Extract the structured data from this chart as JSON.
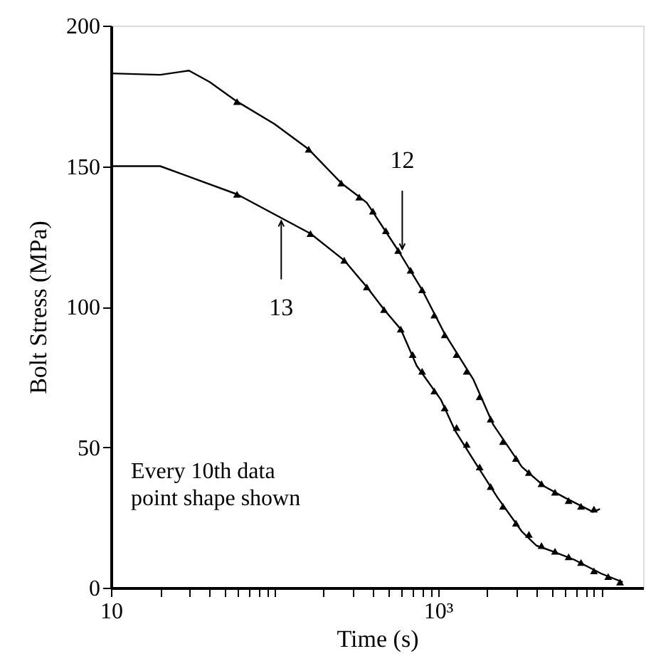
{
  "chart_data": {
    "type": "line",
    "xlabel": "Time (s)",
    "ylabel": "Bolt Stress (MPa)",
    "log": "x",
    "grid": false,
    "xlim": [
      10,
      18000
    ],
    "ylim": [
      0,
      200
    ],
    "xticks": [
      10,
      {
        "value": 20,
        "label": null
      },
      {
        "value": 30,
        "label": null
      },
      {
        "value": 40,
        "label": null
      },
      {
        "value": 50,
        "label": null
      },
      {
        "value": 60,
        "label": null
      },
      {
        "value": 70,
        "label": null
      },
      {
        "value": 80,
        "label": null
      },
      {
        "value": 90,
        "label": null
      },
      {
        "value": 100,
        "label": null
      },
      {
        "value": 200,
        "label": null
      },
      {
        "value": 300,
        "label": null
      },
      {
        "value": 400,
        "label": null
      },
      {
        "value": 500,
        "label": null
      },
      {
        "value": 600,
        "label": null
      },
      {
        "value": 700,
        "label": null
      },
      {
        "value": 800,
        "label": null
      },
      {
        "value": 900,
        "label": null
      },
      {
        "value": 1000,
        "label": "10³"
      },
      {
        "value": 2000,
        "label": null
      },
      {
        "value": 3000,
        "label": null
      },
      {
        "value": 4000,
        "label": null
      },
      {
        "value": 5000,
        "label": null
      },
      {
        "value": 6000,
        "label": null
      },
      {
        "value": 7000,
        "label": null
      },
      {
        "value": 8000,
        "label": null
      },
      {
        "value": 9000,
        "label": null
      },
      {
        "value": 10000,
        "label": null
      }
    ],
    "yticks": [
      0,
      50,
      100,
      150,
      200
    ],
    "series": [
      {
        "color": "#000000",
        "x": [
          10,
          20,
          30,
          40,
          59,
          100,
          162,
          256,
          367,
          571,
          800,
          1085,
          1650,
          2180,
          3260,
          4490,
          6000,
          8870,
          9800
        ],
        "values": [
          183,
          182.5,
          184,
          180,
          173,
          165,
          156,
          144,
          137,
          120,
          106,
          91,
          74,
          58,
          43,
          36,
          32,
          27,
          28
        ]
      },
      {
        "type": "scatter",
        "marker": "triangle",
        "color": "#000000",
        "x": [
          59,
          162,
          256,
          330,
          400,
          480,
          571,
          680,
          800,
          950,
          1100,
          1300,
          1500,
          1800,
          2100,
          2500,
          3000,
          3600,
          4300,
          5200,
          6300,
          7500,
          9000
        ],
        "values": [
          173,
          156,
          144,
          139,
          134,
          127,
          120,
          113,
          106,
          97,
          90,
          83,
          77,
          68,
          60,
          52,
          46,
          41,
          37,
          34,
          31,
          29,
          28
        ]
      },
      {
        "color": "#000000",
        "x": [
          10,
          20,
          59,
          166,
          267,
          367,
          468,
          592,
          741,
          1040,
          1270,
          1650,
          2320,
          3260,
          4000,
          5000,
          6800,
          10000,
          13500
        ],
        "values": [
          150,
          150,
          140,
          126,
          116.5,
          107,
          99,
          92,
          79,
          67,
          56,
          45.5,
          32,
          20,
          15,
          13,
          10,
          5,
          2
        ]
      },
      {
        "type": "scatter",
        "marker": "triangle",
        "color": "#000000",
        "x": [
          59,
          166,
          267,
          367,
          468,
          592,
          700,
          800,
          950,
          1100,
          1300,
          1500,
          1800,
          2100,
          2500,
          3000,
          3600,
          4300,
          5200,
          6300,
          7500,
          9000,
          11000,
          13000
        ],
        "values": [
          140,
          126,
          116.5,
          107,
          99,
          92,
          83,
          77,
          70,
          64,
          57,
          51,
          43,
          36,
          29,
          23,
          19,
          15,
          13,
          11,
          9,
          6,
          4,
          2
        ]
      }
    ],
    "annotations": [
      {
        "text": "12",
        "x": 605,
        "y": 119
      },
      {
        "text": "13",
        "x": 110,
        "y": 132
      },
      "Every 10th data point shape shown"
    ]
  }
}
